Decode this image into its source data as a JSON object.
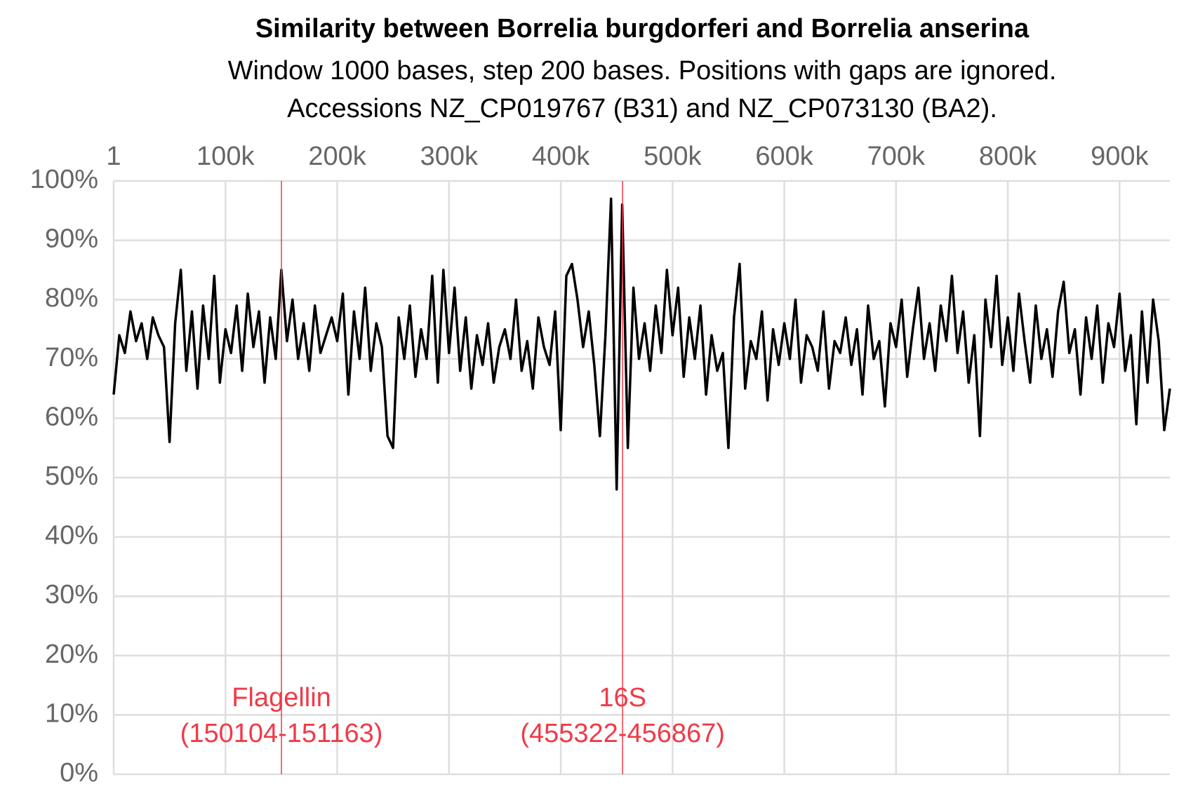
{
  "chart_data": {
    "type": "line",
    "title": "Similarity between Borrelia burgdorferi and Borrelia anserina",
    "subtitle": [
      "Window 1000 bases, step 200 bases. Positions with gaps are ignored.",
      "Accessions NZ_CP019767 (B31) and NZ_CP073130 (BA2)."
    ],
    "color": "#000000",
    "x": [
      1,
      5000,
      10000,
      15000,
      20000,
      25000,
      30000,
      35000,
      40000,
      45000,
      50000,
      55000,
      60000,
      65000,
      70000,
      75000,
      80000,
      85000,
      90000,
      95000,
      100000,
      105000,
      110000,
      115000,
      120000,
      125000,
      130000,
      135000,
      140000,
      145000,
      150000,
      155000,
      160000,
      165000,
      170000,
      175000,
      180000,
      185000,
      190000,
      195000,
      200000,
      205000,
      210000,
      215000,
      220000,
      225000,
      230000,
      235000,
      240000,
      245000,
      250000,
      255000,
      260000,
      265000,
      270000,
      275000,
      280000,
      285000,
      290000,
      295000,
      300000,
      305000,
      310000,
      315000,
      320000,
      325000,
      330000,
      335000,
      340000,
      345000,
      350000,
      355000,
      360000,
      365000,
      370000,
      375000,
      380000,
      385000,
      390000,
      395000,
      400000,
      405000,
      410000,
      415000,
      420000,
      425000,
      430000,
      435000,
      440000,
      445000,
      450000,
      455000,
      460000,
      465000,
      470000,
      475000,
      480000,
      485000,
      490000,
      495000,
      500000,
      505000,
      510000,
      515000,
      520000,
      525000,
      530000,
      535000,
      540000,
      545000,
      550000,
      555000,
      560000,
      565000,
      570000,
      575000,
      580000,
      585000,
      590000,
      595000,
      600000,
      605000,
      610000,
      615000,
      620000,
      625000,
      630000,
      635000,
      640000,
      645000,
      650000,
      655000,
      660000,
      665000,
      670000,
      675000,
      680000,
      685000,
      690000,
      695000,
      700000,
      705000,
      710000,
      715000,
      720000,
      725000,
      730000,
      735000,
      740000,
      745000,
      750000,
      755000,
      760000,
      765000,
      770000,
      775000,
      780000,
      785000,
      790000,
      795000,
      800000,
      805000,
      810000,
      815000,
      820000,
      825000,
      830000,
      835000,
      840000,
      845000,
      850000,
      855000,
      860000,
      865000,
      870000,
      875000,
      880000,
      885000,
      890000,
      895000,
      900000,
      905000,
      910000,
      915000,
      920000,
      925000,
      930000,
      935000,
      940000,
      945000
    ],
    "values": [
      64,
      74,
      71,
      78,
      73,
      76,
      70,
      77,
      74,
      72,
      56,
      76,
      85,
      68,
      78,
      65,
      79,
      70,
      84,
      66,
      75,
      71,
      79,
      68,
      81,
      72,
      78,
      66,
      77,
      70,
      85,
      73,
      80,
      70,
      76,
      68,
      79,
      71,
      74,
      77,
      73,
      81,
      64,
      78,
      70,
      82,
      68,
      76,
      72,
      57,
      55,
      77,
      70,
      79,
      67,
      75,
      70,
      84,
      66,
      85,
      71,
      82,
      68,
      77,
      65,
      74,
      69,
      76,
      66,
      72,
      75,
      70,
      80,
      68,
      73,
      65,
      77,
      72,
      69,
      78,
      58,
      84,
      86,
      80,
      72,
      78,
      69,
      57,
      74,
      97,
      48,
      96,
      55,
      82,
      70,
      76,
      68,
      79,
      71,
      85,
      74,
      82,
      67,
      77,
      70,
      79,
      64,
      74,
      68,
      71,
      55,
      77,
      86,
      65,
      73,
      70,
      78,
      63,
      75,
      69,
      76,
      70,
      80,
      66,
      74,
      72,
      68,
      78,
      65,
      73,
      71,
      77,
      69,
      75,
      64,
      79,
      70,
      73,
      62,
      76,
      72,
      80,
      67,
      75,
      82,
      70,
      76,
      68,
      79,
      73,
      84,
      71,
      78,
      66,
      74,
      57,
      80,
      72,
      84,
      69,
      77,
      68,
      81,
      73,
      66,
      79,
      70,
      75,
      67,
      78,
      83,
      71,
      75,
      64,
      77,
      70,
      79,
      66,
      76,
      72,
      81,
      68,
      74,
      59,
      78,
      66,
      80,
      73,
      58,
      65
    ],
    "xlim": [
      1,
      945000
    ],
    "ylim": [
      0,
      100
    ],
    "xticks": [
      1,
      {
        "value": 100000,
        "label": "100k"
      },
      {
        "value": 200000,
        "label": "200k"
      },
      {
        "value": 300000,
        "label": "300k"
      },
      {
        "value": 400000,
        "label": "400k"
      },
      {
        "value": 500000,
        "label": "500k"
      },
      {
        "value": 600000,
        "label": "600k"
      },
      {
        "value": 700000,
        "label": "700k"
      },
      {
        "value": 800000,
        "label": "800k"
      },
      {
        "value": 900000,
        "label": "900k"
      }
    ],
    "yticks": [
      {
        "value": 0,
        "label": "0%"
      },
      {
        "value": 10,
        "label": "10%"
      },
      {
        "value": 20,
        "label": "20%"
      },
      {
        "value": 30,
        "label": "30%"
      },
      {
        "value": 40,
        "label": "40%"
      },
      {
        "value": 50,
        "label": "50%"
      },
      {
        "value": 60,
        "label": "60%"
      },
      {
        "value": 70,
        "label": "70%"
      },
      {
        "value": 80,
        "label": "80%"
      },
      {
        "value": 90,
        "label": "90%"
      },
      {
        "value": 100,
        "label": "100%"
      }
    ],
    "grid": true,
    "annotation_color": "#f03a47",
    "annotations": [
      {
        "x": 150104,
        "label": "Flagellin",
        "range": "(150104-151163)"
      },
      {
        "x": 455322,
        "label": "16S",
        "range": "(455322-456867)"
      }
    ]
  }
}
